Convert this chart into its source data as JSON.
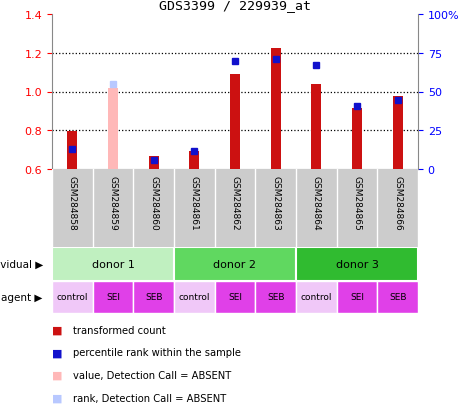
{
  "title": "GDS3399 / 229939_at",
  "samples": [
    "GSM284858",
    "GSM284859",
    "GSM284860",
    "GSM284861",
    "GSM284862",
    "GSM284863",
    "GSM284864",
    "GSM284865",
    "GSM284866"
  ],
  "red_values": [
    0.795,
    1.02,
    0.665,
    0.695,
    1.09,
    1.225,
    1.04,
    0.915,
    0.975
  ],
  "blue_values": [
    0.705,
    1.04,
    0.645,
    0.695,
    1.155,
    1.17,
    1.135,
    0.925,
    0.955
  ],
  "red_absent": [
    false,
    true,
    false,
    false,
    false,
    false,
    false,
    false,
    false
  ],
  "blue_absent": [
    false,
    true,
    false,
    false,
    false,
    false,
    false,
    false,
    false
  ],
  "ylim": [
    0.6,
    1.4
  ],
  "yticks": [
    0.6,
    0.8,
    1.0,
    1.2,
    1.4
  ],
  "y2ticks": [
    0,
    25,
    50,
    75,
    100
  ],
  "y2labels": [
    "0",
    "25",
    "50",
    "75",
    "100%"
  ],
  "donors": [
    {
      "label": "donor 1",
      "start": 0,
      "end": 3,
      "color_light": "#c8f5c8",
      "color_dark": "#50d050"
    },
    {
      "label": "donor 2",
      "start": 3,
      "end": 6,
      "color_light": "#80e880",
      "color_dark": "#30c030"
    },
    {
      "label": "donor 3",
      "start": 6,
      "end": 9,
      "color_light": "#40cc40",
      "color_dark": "#20aa20"
    }
  ],
  "agents": [
    "control",
    "SEI",
    "SEB",
    "control",
    "SEI",
    "SEB",
    "control",
    "SEI",
    "SEB"
  ],
  "agent_colors": [
    "#f0c8f8",
    "#e040e8",
    "#e040e8",
    "#f0c8f8",
    "#e040e8",
    "#e040e8",
    "#f0c8f8",
    "#e040e8",
    "#e040e8"
  ],
  "bar_baseline": 0.6,
  "bar_width": 0.25,
  "red_color": "#cc1111",
  "blue_color": "#1111cc",
  "red_absent_color": "#ffb8b8",
  "blue_absent_color": "#b8c8ff",
  "grid_color": "#000000",
  "bg_color": "#ffffff",
  "gsm_bg_color": "#cccccc",
  "legend_items": [
    {
      "color": "#cc1111",
      "text": "transformed count"
    },
    {
      "color": "#1111cc",
      "text": "percentile rank within the sample"
    },
    {
      "color": "#ffb8b8",
      "text": "value, Detection Call = ABSENT"
    },
    {
      "color": "#b8c8ff",
      "text": "rank, Detection Call = ABSENT"
    }
  ]
}
